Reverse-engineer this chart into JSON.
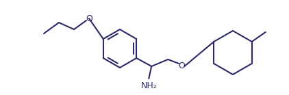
{
  "bg_color": "#ffffff",
  "line_color": "#2a2a6a",
  "line_width": 1.5,
  "nh2_label": "NH₂",
  "o_label1": "O",
  "o_label2": "O",
  "font_size_label": 9,
  "fig_width": 4.22,
  "fig_height": 1.39,
  "dpi": 100
}
